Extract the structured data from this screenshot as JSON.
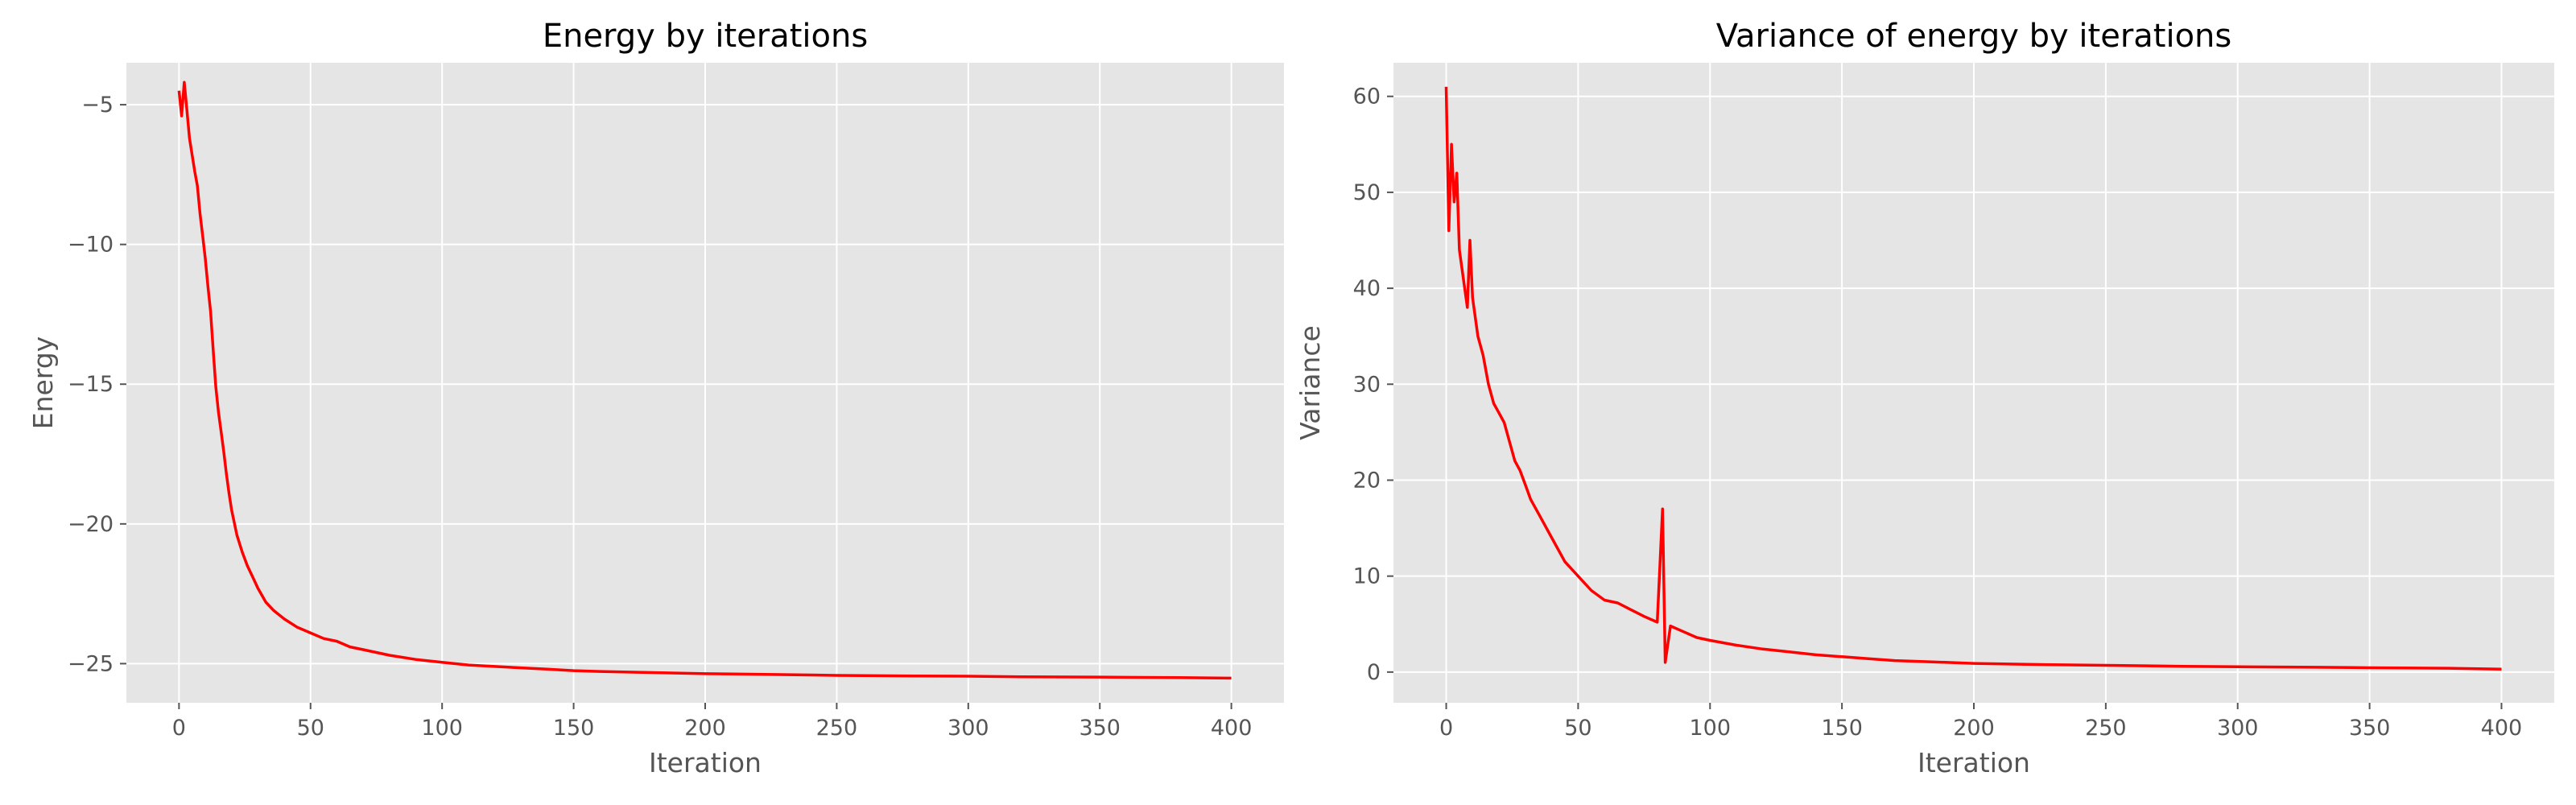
{
  "colors": {
    "plot_background": "#e5e5e5",
    "grid": "#ffffff",
    "line": "#ff0000",
    "tick": "#555555"
  },
  "chart_data": [
    {
      "type": "line",
      "title": "Energy by iterations",
      "xlabel": "Iteration",
      "ylabel": "Energy",
      "xlim": [
        -20,
        420
      ],
      "ylim": [
        -26.4,
        -3.5
      ],
      "xticks": [
        0,
        50,
        100,
        150,
        200,
        250,
        300,
        350,
        400
      ],
      "yticks": [
        -25,
        -20,
        -15,
        -10,
        -5
      ],
      "grid": true,
      "series": [
        {
          "color": "#ff0000",
          "x": [
            0,
            1,
            2,
            3,
            4,
            5,
            6,
            7,
            8,
            9,
            10,
            11,
            12,
            13,
            14,
            15,
            16,
            17,
            18,
            19,
            20,
            22,
            24,
            26,
            28,
            30,
            33,
            36,
            40,
            45,
            50,
            55,
            60,
            65,
            70,
            75,
            80,
            90,
            100,
            110,
            120,
            130,
            140,
            150,
            160,
            180,
            200,
            220,
            250,
            280,
            300,
            320,
            350,
            380,
            400
          ],
          "y": [
            -4.5,
            -5.4,
            -4.2,
            -5.2,
            -6.2,
            -6.8,
            -7.4,
            -7.9,
            -8.9,
            -9.7,
            -10.5,
            -11.5,
            -12.4,
            -13.8,
            -15.1,
            -16.0,
            -16.7,
            -17.4,
            -18.2,
            -18.9,
            -19.5,
            -20.4,
            -21.0,
            -21.5,
            -21.9,
            -22.3,
            -22.8,
            -23.1,
            -23.4,
            -23.7,
            -23.9,
            -24.1,
            -24.2,
            -24.4,
            -24.5,
            -24.6,
            -24.7,
            -24.85,
            -24.95,
            -25.05,
            -25.1,
            -25.15,
            -25.2,
            -25.25,
            -25.28,
            -25.32,
            -25.36,
            -25.38,
            -25.42,
            -25.44,
            -25.45,
            -25.47,
            -25.48,
            -25.5,
            -25.52
          ]
        }
      ]
    },
    {
      "type": "line",
      "title": "Variance of energy by iterations",
      "xlabel": "Iteration",
      "ylabel": "Variance",
      "xlim": [
        -20,
        420
      ],
      "ylim": [
        -3.2,
        63.5
      ],
      "xticks": [
        0,
        50,
        100,
        150,
        200,
        250,
        300,
        350,
        400
      ],
      "yticks": [
        0,
        10,
        20,
        30,
        40,
        50,
        60
      ],
      "grid": true,
      "series": [
        {
          "color": "#ff0000",
          "x": [
            0,
            1,
            2,
            3,
            4,
            5,
            6,
            7,
            8,
            9,
            10,
            12,
            14,
            16,
            18,
            20,
            22,
            24,
            26,
            28,
            30,
            32,
            35,
            40,
            45,
            50,
            55,
            60,
            65,
            70,
            75,
            80,
            82,
            83,
            85,
            90,
            95,
            100,
            110,
            120,
            130,
            140,
            150,
            160,
            170,
            180,
            190,
            200,
            220,
            250,
            280,
            300,
            330,
            350,
            380,
            400
          ],
          "y": [
            61,
            46,
            55,
            49,
            52,
            44,
            42,
            40,
            38,
            45,
            39,
            35,
            33,
            30,
            28,
            27,
            26,
            24,
            22,
            21,
            19.5,
            18,
            16.5,
            14,
            11.5,
            10,
            8.5,
            7.5,
            7.2,
            6.5,
            5.8,
            5.2,
            17,
            1,
            4.8,
            4.2,
            3.6,
            3.3,
            2.8,
            2.4,
            2.1,
            1.8,
            1.6,
            1.4,
            1.2,
            1.1,
            1.0,
            0.9,
            0.8,
            0.7,
            0.6,
            0.55,
            0.5,
            0.45,
            0.4,
            0.3
          ]
        }
      ]
    }
  ]
}
